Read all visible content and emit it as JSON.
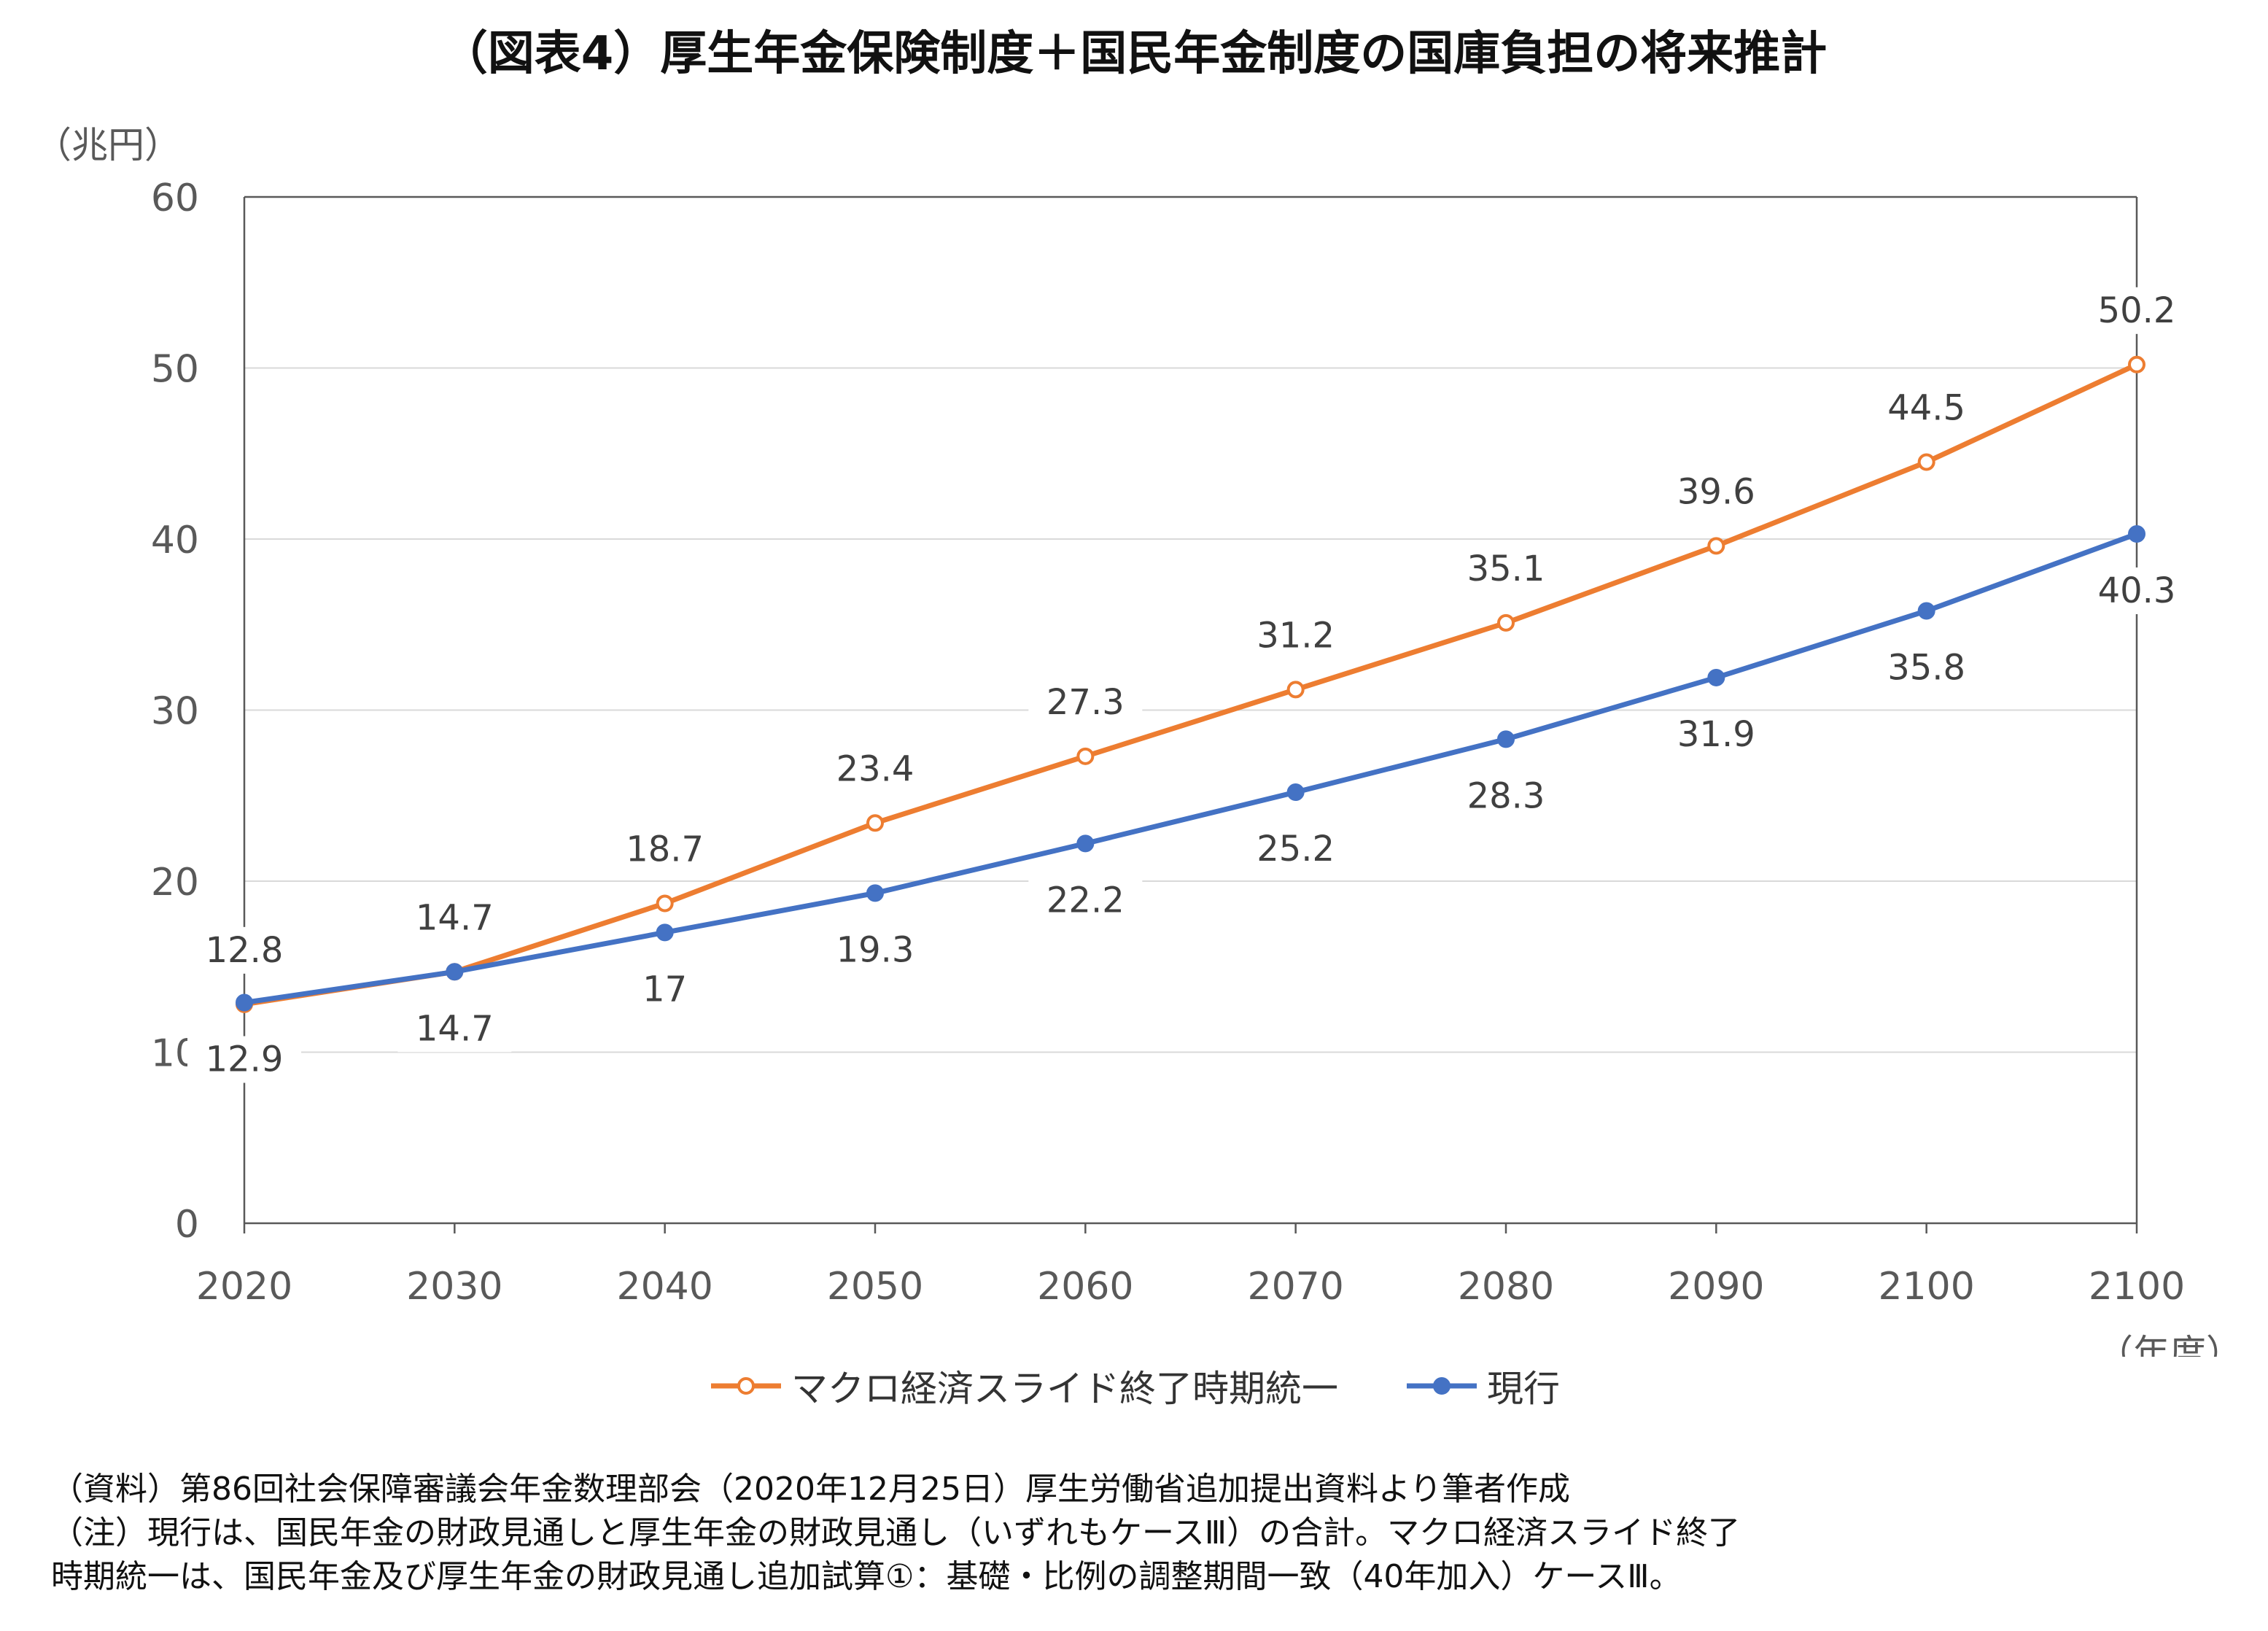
{
  "title": "（図表4）厚生年金保険制度＋国民年金制度の国庫負担の将来推計",
  "legend": [
    {
      "label": "マクロ経済スライド終了時期統一"
    },
    {
      "label": "現行"
    }
  ],
  "footnotes": [
    "（資料）第86回社会保障審議会年金数理部会（2020年12月25日）厚生労働省追加提出資料より筆者作成",
    "（注）現行は、国民年金の財政見通しと厚生年金の財政見通し（いずれもケースⅢ）の合計。マクロ経済スライド終了",
    "時期統一は、国民年金及び厚生年金の財政見通し追加試算①：基礎・比例の調整期間一致（40年加入）ケースⅢ。"
  ],
  "chart_data": {
    "type": "line",
    "categories": [
      "2020",
      "2030",
      "2040",
      "2050",
      "2060",
      "2070",
      "2080",
      "2090",
      "2100",
      "2100"
    ],
    "series": [
      {
        "name": "マクロ経済スライド終了時期統一",
        "values": [
          12.8,
          14.7,
          18.7,
          23.4,
          27.3,
          31.2,
          35.1,
          39.6,
          44.5,
          50.2
        ],
        "labels": [
          "12.8",
          "14.7",
          "18.7",
          "23.4",
          "27.3",
          "31.2",
          "35.1",
          "39.6",
          "44.5",
          "50.2"
        ],
        "label_position": "above",
        "color": "#ED7D31",
        "marker": "hollow-circle"
      },
      {
        "name": "現行",
        "values": [
          12.9,
          14.7,
          17.0,
          19.3,
          22.2,
          25.2,
          28.3,
          31.9,
          35.8,
          40.3
        ],
        "labels": [
          "12.9",
          "14.7",
          "17",
          "19.3",
          "22.2",
          "25.2",
          "28.3",
          "31.9",
          "35.8",
          "40.3"
        ],
        "label_position": "below",
        "color": "#4472C4",
        "marker": "filled-circle"
      }
    ],
    "yunit": "（兆円）",
    "xunit": "（年度）",
    "ylim": [
      0,
      60
    ],
    "yticks": [
      0,
      10,
      20,
      30,
      40,
      50,
      60
    ],
    "grid": true,
    "legend_position": "bottom"
  }
}
